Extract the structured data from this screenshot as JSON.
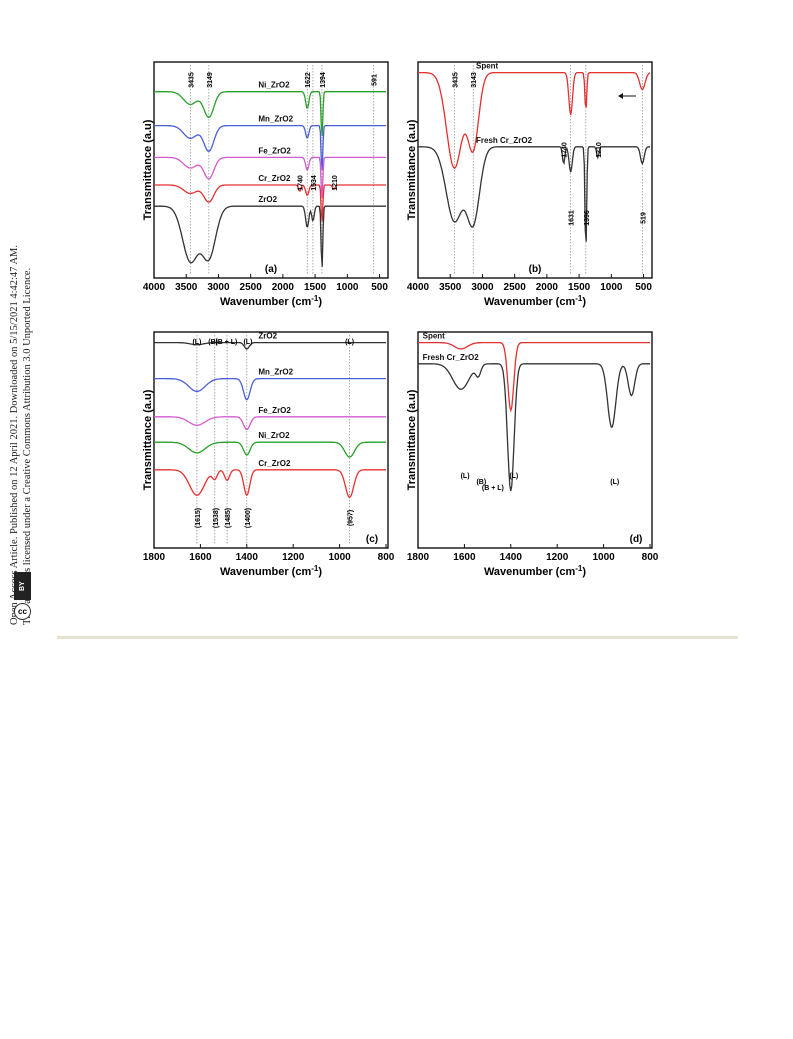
{
  "notice": {
    "line1": "Open Access Article. Published on 12 April 2021. Downloaded on 5/15/2021 4:42:47 AM.",
    "line2": "This article is licensed under a Creative Commons Attribution 3.0 Unported Licence.",
    "cc_label": "cc",
    "by_label": "BY"
  },
  "chart_data": [
    {
      "id": "a",
      "type": "line",
      "panel_label": "(a)",
      "xlabel": "Wavenumber (cm",
      "xlabel_sup": "-1",
      "xlabel_close": ")",
      "ylabel": "Transmittance (a.u)",
      "xlim": [
        4000,
        400
      ],
      "x_reversed": true,
      "xticks": [
        4000,
        3500,
        3000,
        2500,
        2000,
        1500,
        1000,
        500
      ],
      "yticks_shown": false,
      "vlines": [
        3435,
        3149,
        1622,
        1534,
        1394,
        591
      ],
      "peak_labels": [
        {
          "text": "3435",
          "x": 3435
        },
        {
          "text": "3149",
          "x": 3149
        },
        {
          "text": "1622",
          "x": 1622
        },
        {
          "text": "1394",
          "x": 1394
        },
        {
          "text": "591",
          "x": 591
        },
        {
          "text": "1740",
          "x": 1740
        },
        {
          "text": "1534",
          "x": 1534
        },
        {
          "text": "1210",
          "x": 1210
        }
      ],
      "series": [
        {
          "name": "Ni_ZrO2",
          "color": "#2aa02a",
          "offset": 0.86,
          "dips": [
            [
              3435,
              0.06,
              150
            ],
            [
              3149,
              0.12,
              110
            ],
            [
              1622,
              0.08,
              35
            ],
            [
              1394,
              0.22,
              18
            ]
          ]
        },
        {
          "name": "Mn_ZrO2",
          "color": "#4a5ed8",
          "offset": 0.7,
          "dips": [
            [
              3435,
              0.06,
              150
            ],
            [
              3149,
              0.12,
              110
            ],
            [
              1622,
              0.06,
              35
            ],
            [
              1394,
              0.22,
              18
            ]
          ]
        },
        {
          "name": "Fe_ZrO2",
          "color": "#d35ad0",
          "offset": 0.55,
          "dips": [
            [
              3435,
              0.05,
              150
            ],
            [
              3149,
              0.1,
              110
            ],
            [
              1622,
              0.06,
              35
            ],
            [
              1394,
              0.2,
              18
            ]
          ]
        },
        {
          "name": "Cr_ZrO2",
          "color": "#e53030",
          "offset": 0.42,
          "dips": [
            [
              3435,
              0.04,
              150
            ],
            [
              3149,
              0.08,
              110
            ],
            [
              1740,
              0.03,
              25
            ],
            [
              1622,
              0.05,
              35
            ],
            [
              1394,
              0.18,
              18
            ],
            [
              1210,
              0.02,
              30
            ]
          ]
        },
        {
          "name": "ZrO2",
          "color": "#333333",
          "offset": 0.32,
          "dips": [
            [
              3435,
              0.26,
              170
            ],
            [
              3149,
              0.24,
              150
            ],
            [
              1622,
              0.1,
              35
            ],
            [
              1534,
              0.07,
              28
            ],
            [
              1394,
              0.3,
              18
            ]
          ]
        }
      ]
    },
    {
      "id": "b",
      "type": "line",
      "panel_label": "(b)",
      "xlabel": "Wavenumber (cm",
      "xlabel_sup": "-1",
      "xlabel_close": ")",
      "ylabel": "Transmittance (a.u)",
      "xlim": [
        4000,
        400
      ],
      "x_reversed": true,
      "xticks": [
        4000,
        3500,
        3000,
        2500,
        2000,
        1500,
        1000,
        500
      ],
      "yticks_shown": false,
      "vlines": [
        3435,
        3143,
        1631,
        1396,
        519
      ],
      "peak_labels": [
        {
          "text": "3435",
          "x": 3435
        },
        {
          "text": "3143",
          "x": 3143
        },
        {
          "text": "1740",
          "x": 1740
        },
        {
          "text": "1210",
          "x": 1210
        },
        {
          "text": "1631",
          "x": 1631
        },
        {
          "text": "1396",
          "x": 1396
        },
        {
          "text": "519",
          "x": 519
        }
      ],
      "series": [
        {
          "name": "Spent",
          "color": "#e53030",
          "offset": 0.95,
          "dips": [
            [
              3435,
              0.45,
              170
            ],
            [
              3143,
              0.35,
              120
            ],
            [
              1631,
              0.2,
              40
            ],
            [
              1396,
              0.18,
              20
            ],
            [
              519,
              0.08,
              60
            ]
          ]
        },
        {
          "name": "Fresh Cr_ZrO2",
          "color": "#333333",
          "offset": 0.6,
          "dips": [
            [
              3435,
              0.35,
              180
            ],
            [
              3143,
              0.35,
              140
            ],
            [
              1740,
              0.08,
              25
            ],
            [
              1631,
              0.12,
              35
            ],
            [
              1396,
              0.5,
              18
            ],
            [
              1210,
              0.05,
              25
            ],
            [
              519,
              0.08,
              40
            ]
          ]
        }
      ],
      "arrow": true
    },
    {
      "id": "c",
      "type": "line",
      "panel_label": "(c)",
      "xlabel": "Wavenumber (cm",
      "xlabel_sup": "-1",
      "xlabel_close": ")",
      "ylabel": "Transmittance (a.u)",
      "xlim": [
        1800,
        800
      ],
      "x_reversed": true,
      "xticks": [
        1800,
        1600,
        1400,
        1200,
        1000,
        800
      ],
      "yticks_shown": false,
      "vlines": [
        1615,
        1538,
        1485,
        1400,
        957
      ],
      "top_labels": [
        {
          "text": "(L)",
          "x": 1615
        },
        {
          "text": "(B)",
          "x": 1545
        },
        {
          "text": "(B + L)",
          "x": 1488
        },
        {
          "text": "(L)",
          "x": 1395
        },
        {
          "text": "(L)",
          "x": 957
        }
      ],
      "bottom_labels": [
        {
          "text": "(1615)",
          "x": 1615
        },
        {
          "text": "(1538)",
          "x": 1538
        },
        {
          "text": "(1485)",
          "x": 1485
        },
        {
          "text": "(1400)",
          "x": 1400
        },
        {
          "text": "(957)",
          "x": 957
        }
      ],
      "series": [
        {
          "name": "ZrO2",
          "color": "#333333",
          "offset": 0.95,
          "dips": [
            [
              1615,
              0.01,
              40
            ],
            [
              1400,
              0.03,
              15
            ]
          ]
        },
        {
          "name": "Mn_ZrO2",
          "color": "#4a5ed8",
          "offset": 0.78,
          "dips": [
            [
              1615,
              0.06,
              50
            ],
            [
              1400,
              0.1,
              20
            ]
          ]
        },
        {
          "name": "Fe_ZrO2",
          "color": "#d35ad0",
          "offset": 0.6,
          "dips": [
            [
              1615,
              0.04,
              50
            ],
            [
              1400,
              0.06,
              20
            ]
          ]
        },
        {
          "name": "Ni_ZrO2",
          "color": "#2aa02a",
          "offset": 0.48,
          "dips": [
            [
              1615,
              0.05,
              50
            ],
            [
              1400,
              0.06,
              20
            ],
            [
              957,
              0.07,
              30
            ]
          ]
        },
        {
          "name": "Cr_ZrO2",
          "color": "#e53030",
          "offset": 0.35,
          "dips": [
            [
              1615,
              0.12,
              45
            ],
            [
              1538,
              0.04,
              15
            ],
            [
              1485,
              0.05,
              15
            ],
            [
              1400,
              0.12,
              18
            ],
            [
              957,
              0.13,
              25
            ]
          ]
        }
      ]
    },
    {
      "id": "d",
      "type": "line",
      "panel_label": "(d)",
      "xlabel": "Wavenumber (cm",
      "xlabel_sup": "-1",
      "xlabel_close": ")",
      "ylabel": "Transmittance (a.u)",
      "xlim": [
        1800,
        800
      ],
      "x_reversed": true,
      "xticks": [
        1800,
        1600,
        1400,
        1200,
        1000,
        800
      ],
      "yticks_shown": false,
      "peak_labels": [
        {
          "text": "(L)",
          "x": 1610,
          "where": "fresh-low"
        },
        {
          "text": "(B)",
          "x": 1540,
          "where": "fresh-mid"
        },
        {
          "text": "(B + L)",
          "x": 1490,
          "where": "fresh-high"
        },
        {
          "text": "(L)",
          "x": 1400,
          "where": "fresh-low2"
        },
        {
          "text": "(L)",
          "x": 965,
          "where": "fresh-right"
        }
      ],
      "series": [
        {
          "name": "Spent",
          "color": "#e53030",
          "offset": 0.95,
          "dips": [
            [
              1615,
              0.03,
              40
            ],
            [
              1400,
              0.32,
              18
            ]
          ]
        },
        {
          "name": "Fresh Cr_ZrO2",
          "color": "#333333",
          "offset": 0.85,
          "dips": [
            [
              1615,
              0.12,
              50
            ],
            [
              1540,
              0.05,
              15
            ],
            [
              1400,
              0.6,
              20
            ],
            [
              965,
              0.3,
              25
            ],
            [
              880,
              0.15,
              20
            ]
          ]
        }
      ]
    }
  ]
}
